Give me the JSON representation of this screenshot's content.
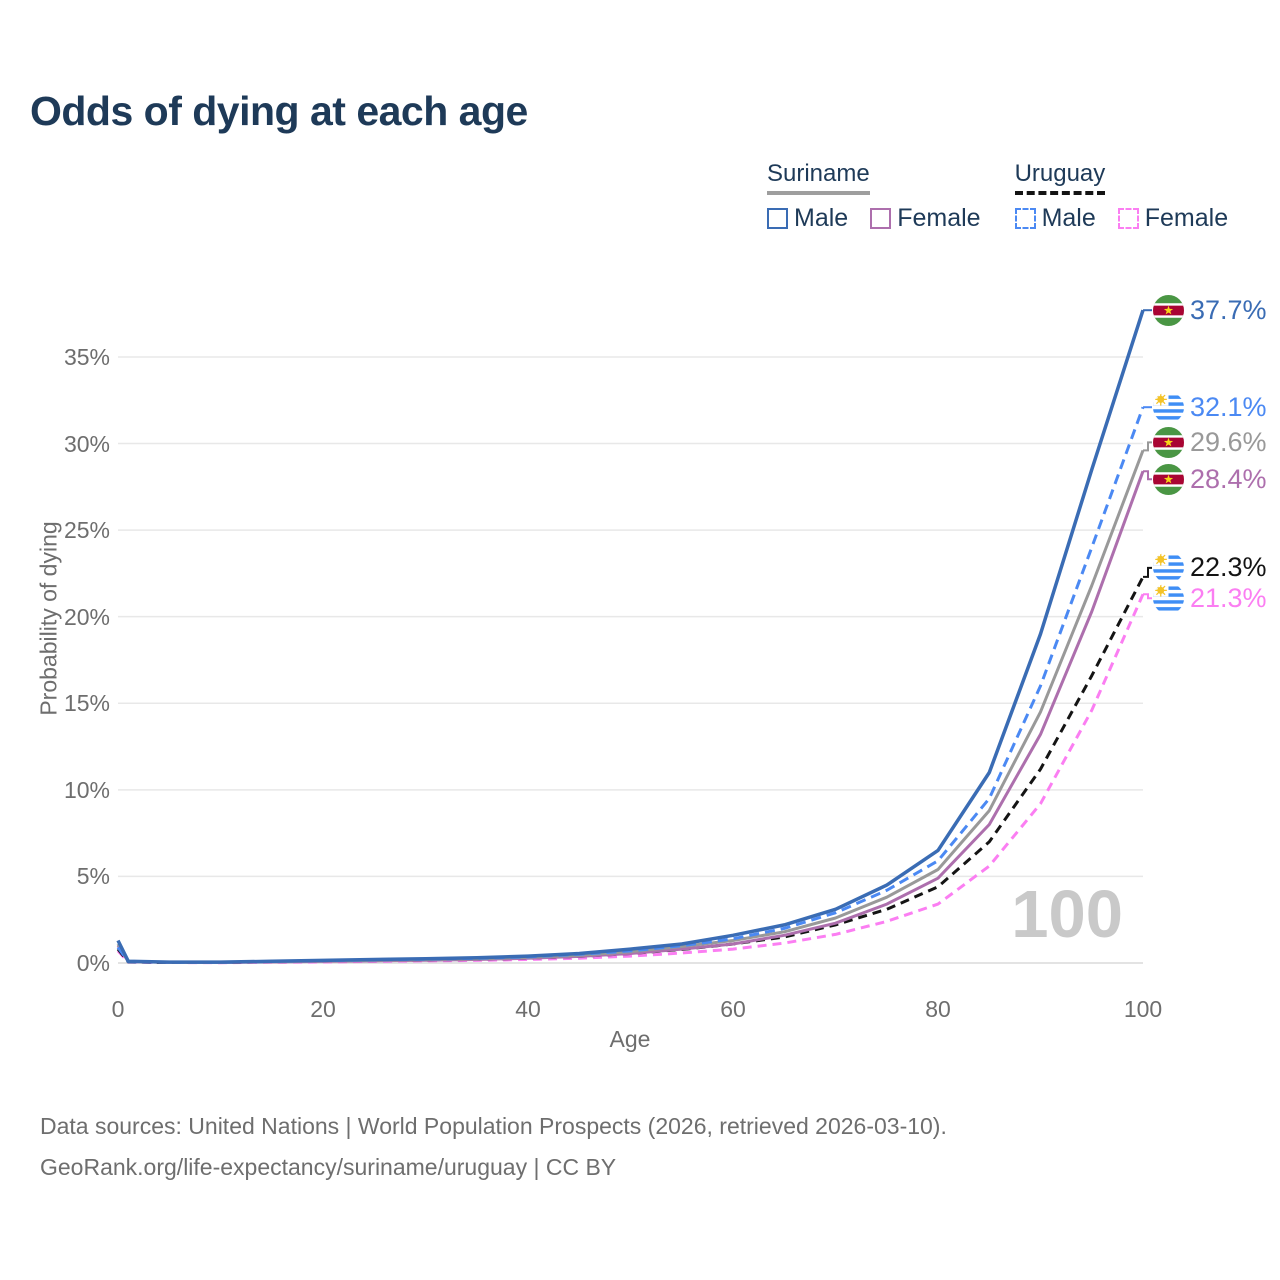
{
  "title": "Odds of dying at each age",
  "legend": {
    "groups": [
      {
        "name": "Suriname",
        "underline_style": "solid",
        "underline_color": "#9e9e9e",
        "items": [
          {
            "label": "Male",
            "color": "#3a6cb4",
            "dash": false
          },
          {
            "label": "Female",
            "color": "#ad6fad",
            "dash": false
          }
        ]
      },
      {
        "name": "Uruguay",
        "underline_style": "dashed",
        "underline_color": "#141414",
        "items": [
          {
            "label": "Male",
            "color": "#4b89f3",
            "dash": true
          },
          {
            "label": "Female",
            "color": "#fb7ef2",
            "dash": true
          }
        ]
      }
    ]
  },
  "chart_data": {
    "type": "line",
    "title": "Odds of dying at each age",
    "xlabel": "Age",
    "ylabel": "Probability of dying",
    "watermark": "100",
    "x_ticks": [
      0,
      20,
      40,
      60,
      80,
      100
    ],
    "y_ticks": [
      {
        "label": "0%",
        "value": 0
      },
      {
        "label": "5%",
        "value": 5
      },
      {
        "label": "10%",
        "value": 10
      },
      {
        "label": "15%",
        "value": 15
      },
      {
        "label": "20%",
        "value": 20
      },
      {
        "label": "25%",
        "value": 25
      },
      {
        "label": "30%",
        "value": 30
      },
      {
        "label": "35%",
        "value": 35
      }
    ],
    "xlim": [
      0,
      100
    ],
    "ylim": [
      0,
      38.5
    ],
    "grid": "horizontal",
    "legend_position": "top-right",
    "ages": [
      0,
      1,
      5,
      10,
      15,
      20,
      25,
      30,
      35,
      40,
      45,
      50,
      55,
      60,
      65,
      70,
      75,
      80,
      85,
      90,
      95,
      100
    ],
    "series": [
      {
        "key": "suriname-male",
        "name": "Suriname Male",
        "country": "Suriname",
        "sex": "Male",
        "color": "#3a6cb4",
        "dash": null,
        "width": 3.5,
        "flag": "suriname",
        "end_value": 37.7,
        "end_label": "37.7%",
        "label_dy": 0,
        "values": [
          1.3,
          0.1,
          0.05,
          0.05,
          0.1,
          0.15,
          0.2,
          0.25,
          0.3,
          0.4,
          0.55,
          0.8,
          1.1,
          1.6,
          2.2,
          3.1,
          4.5,
          6.5,
          11.0,
          19.0,
          28.5,
          37.7
        ]
      },
      {
        "key": "uruguay-male",
        "name": "Uruguay Male",
        "country": "Uruguay",
        "sex": "Male",
        "color": "#4b89f3",
        "dash": "10 6",
        "width": 3,
        "flag": "uruguay",
        "end_value": 32.1,
        "end_label": "32.1%",
        "label_dy": 0,
        "values": [
          0.9,
          0.07,
          0.04,
          0.04,
          0.09,
          0.14,
          0.18,
          0.22,
          0.27,
          0.35,
          0.5,
          0.7,
          1.0,
          1.4,
          2.0,
          2.9,
          4.2,
          5.9,
          9.5,
          16.0,
          24.0,
          32.1
        ]
      },
      {
        "key": "suriname-both",
        "name": "Suriname",
        "country": "Suriname",
        "sex": "Both",
        "color": "#999999",
        "dash": null,
        "width": 3,
        "flag": "suriname",
        "end_value": 29.6,
        "end_label": "29.6%",
        "label_dy": -8,
        "values": [
          1.1,
          0.09,
          0.04,
          0.04,
          0.08,
          0.12,
          0.16,
          0.2,
          0.25,
          0.33,
          0.45,
          0.65,
          0.95,
          1.3,
          1.8,
          2.6,
          3.8,
          5.4,
          8.8,
          14.5,
          21.8,
          29.6
        ]
      },
      {
        "key": "suriname-female",
        "name": "Suriname Female",
        "country": "Suriname",
        "sex": "Female",
        "color": "#ad6fad",
        "dash": null,
        "width": 3,
        "flag": "suriname",
        "end_value": 28.4,
        "end_label": "28.4%",
        "label_dy": 8,
        "values": [
          1.0,
          0.08,
          0.04,
          0.03,
          0.06,
          0.09,
          0.12,
          0.16,
          0.2,
          0.28,
          0.38,
          0.55,
          0.8,
          1.1,
          1.6,
          2.3,
          3.4,
          4.9,
          8.0,
          13.2,
          20.3,
          28.4
        ]
      },
      {
        "key": "uruguay-both",
        "name": "Uruguay",
        "country": "Uruguay",
        "sex": "Both",
        "color": "#141414",
        "dash": "9 6",
        "width": 3,
        "flag": "uruguay",
        "end_value": 22.3,
        "end_label": "22.3%",
        "label_dy": -9,
        "values": [
          0.8,
          0.06,
          0.03,
          0.03,
          0.07,
          0.11,
          0.14,
          0.17,
          0.21,
          0.28,
          0.38,
          0.55,
          0.78,
          1.1,
          1.5,
          2.2,
          3.1,
          4.4,
          7.0,
          11.2,
          16.6,
          22.3
        ]
      },
      {
        "key": "uruguay-female",
        "name": "Uruguay Female",
        "country": "Uruguay",
        "sex": "Female",
        "color": "#fb7ef2",
        "dash": "9 6",
        "width": 3,
        "flag": "uruguay",
        "end_value": 21.3,
        "end_label": "21.3%",
        "label_dy": 4,
        "values": [
          0.7,
          0.05,
          0.03,
          0.02,
          0.04,
          0.06,
          0.09,
          0.12,
          0.15,
          0.2,
          0.28,
          0.4,
          0.58,
          0.8,
          1.15,
          1.65,
          2.4,
          3.4,
          5.6,
          9.2,
          14.6,
          21.3
        ]
      }
    ]
  },
  "footer": {
    "line1": "Data sources: United Nations | World Population Prospects (2026, retrieved 2026-03-10).",
    "line2": "GeoRank.org/life-expectancy/suriname/uruguay | CC BY"
  }
}
